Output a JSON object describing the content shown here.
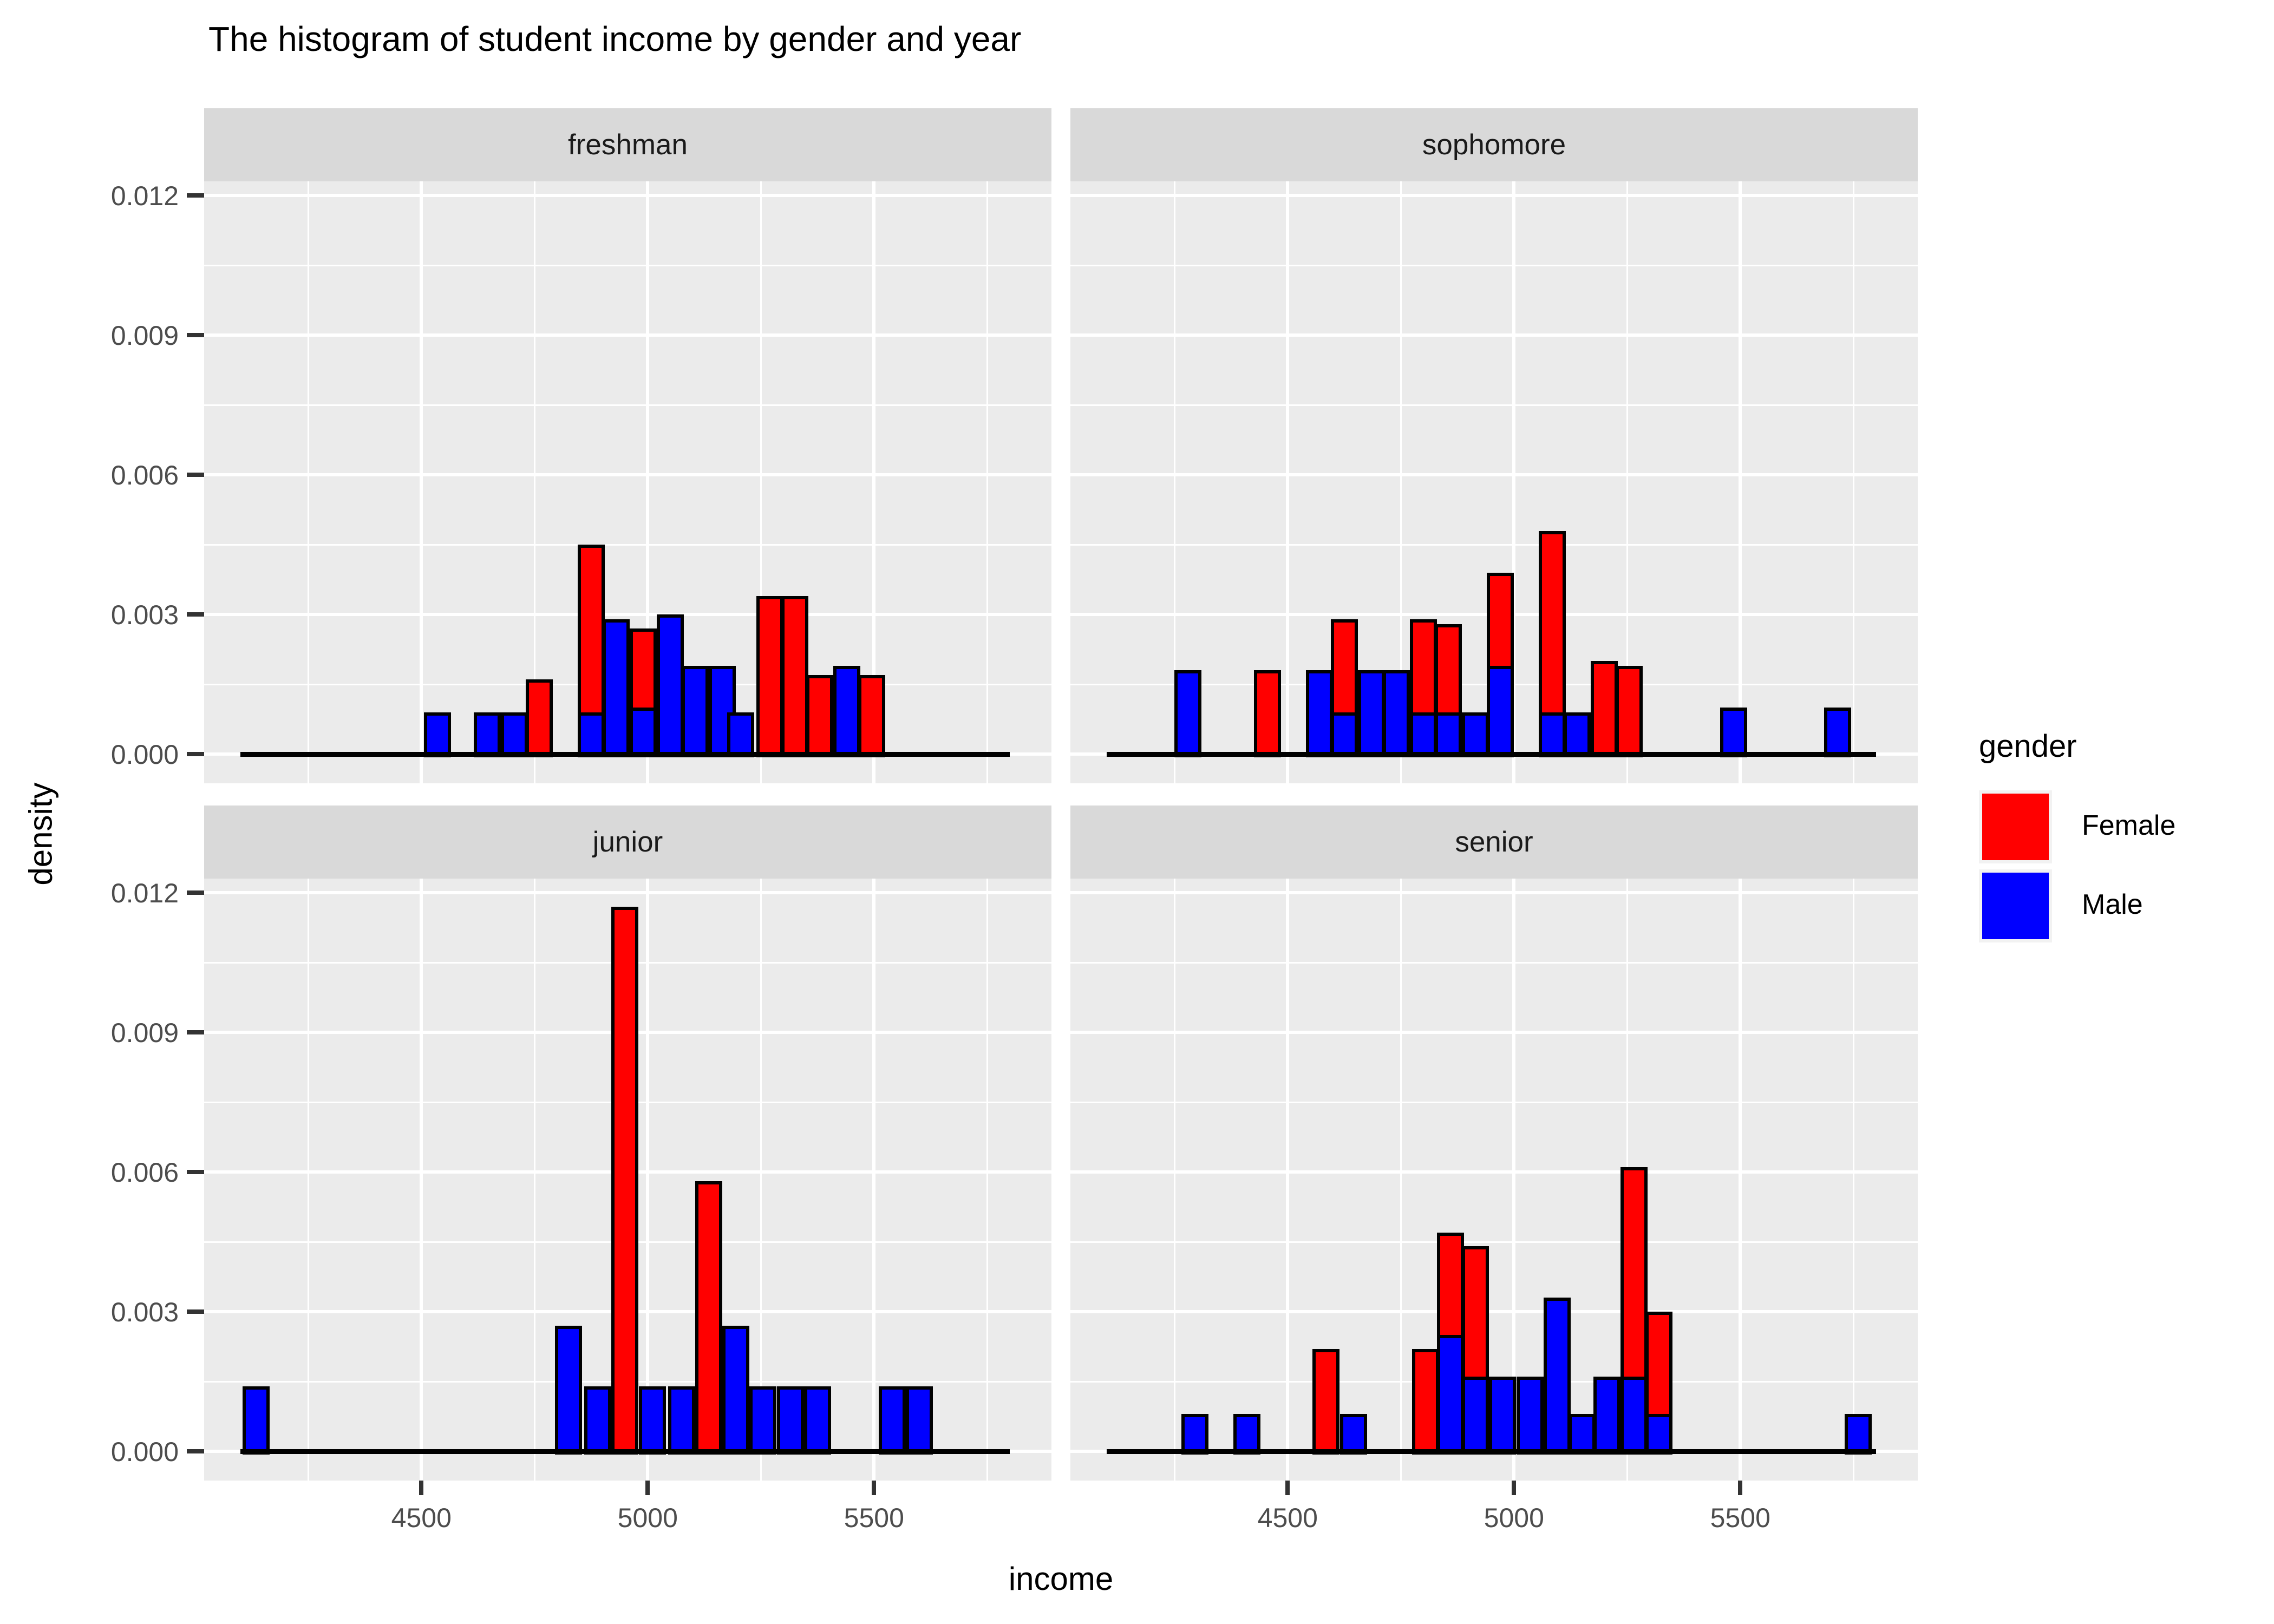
{
  "title": "The histogram of student income by gender and year",
  "colors": {
    "background": "#FFFFFF",
    "panel_bg": "#EBEBEB",
    "strip_bg": "#D9D9D9",
    "grid": "#FFFFFF",
    "bar_outline": "#000000",
    "female": "#FF0000",
    "male": "#0000FF",
    "tick_text": "#4D4D4D",
    "legend_key_bg": "#F2F2F2"
  },
  "legend": {
    "title": "gender"
  },
  "chart_data": {
    "type": "bar",
    "subtype": "stacked-faceted-histogram",
    "title": "The histogram of student income by gender and year",
    "xlabel": "income",
    "ylabel": "density",
    "x_tick_labels": [
      "4500",
      "5000",
      "5500"
    ],
    "x_tick_values": [
      4500,
      5000,
      5500
    ],
    "x_minor_values": [
      4250,
      4750,
      5250,
      5750
    ],
    "y_tick_labels": [
      "0.000",
      "0.003",
      "0.006",
      "0.009",
      "0.012"
    ],
    "y_tick_values": [
      0,
      0.003,
      0.006,
      0.009,
      0.012
    ],
    "y_minor_values": [
      0.0015,
      0.0045,
      0.0075,
      0.0105
    ],
    "x_range": [
      4020,
      5892
    ],
    "y_range": [
      0,
      0.01233
    ],
    "bin_width": 60,
    "baseline_span": [
      4100,
      5800
    ],
    "grid": "on",
    "legend_position": "right",
    "series": [
      {
        "name": "Female",
        "color": "#FF0000"
      },
      {
        "name": "Male",
        "color": "#0000FF"
      }
    ],
    "facets": [
      {
        "label": "freshman",
        "bars": [
          {
            "x": 4535,
            "male": 0.0009,
            "female": 0
          },
          {
            "x": 4645,
            "male": 0.0009,
            "female": 0
          },
          {
            "x": 4705,
            "male": 0.0009,
            "female": 0
          },
          {
            "x": 4760,
            "male": 0,
            "female": 0.0016
          },
          {
            "x": 4875,
            "male": 0.0009,
            "female": 0.0036
          },
          {
            "x": 4930,
            "male": 0.0029,
            "female": 0
          },
          {
            "x": 4990,
            "male": 0.001,
            "female": 0.0017
          },
          {
            "x": 5050,
            "male": 0.003,
            "female": 0
          },
          {
            "x": 5105,
            "male": 0.0019,
            "female": 0
          },
          {
            "x": 5165,
            "male": 0.0019,
            "female": 0
          },
          {
            "x": 5205,
            "male": 0.0009,
            "female": 0
          },
          {
            "x": 5270,
            "male": 0,
            "female": 0.0034
          },
          {
            "x": 5325,
            "male": 0,
            "female": 0.0034
          },
          {
            "x": 5380,
            "male": 0,
            "female": 0.0017
          },
          {
            "x": 5440,
            "male": 0.0019,
            "female": 0
          },
          {
            "x": 5495,
            "male": 0,
            "female": 0.0017
          }
        ]
      },
      {
        "label": "sophomore",
        "bars": [
          {
            "x": 4280,
            "male": 0.0018,
            "female": 0
          },
          {
            "x": 4455,
            "male": 0,
            "female": 0.0018
          },
          {
            "x": 4570,
            "male": 0.0018,
            "female": 0
          },
          {
            "x": 4625,
            "male": 0.0009,
            "female": 0.002
          },
          {
            "x": 4685,
            "male": 0.0018,
            "female": 0
          },
          {
            "x": 4740,
            "male": 0.0018,
            "female": 0
          },
          {
            "x": 4800,
            "male": 0.0009,
            "female": 0.002
          },
          {
            "x": 4855,
            "male": 0.0009,
            "female": 0.0019
          },
          {
            "x": 4915,
            "male": 0.0009,
            "female": 0
          },
          {
            "x": 4970,
            "male": 0.0019,
            "female": 0.002
          },
          {
            "x": 5085,
            "male": 0.0009,
            "female": 0.0039
          },
          {
            "x": 5140,
            "male": 0.0009,
            "female": 0
          },
          {
            "x": 5200,
            "male": 0,
            "female": 0.002
          },
          {
            "x": 5255,
            "male": 0,
            "female": 0.0019
          },
          {
            "x": 5485,
            "male": 0.001,
            "female": 0
          },
          {
            "x": 5715,
            "male": 0.001,
            "female": 0
          }
        ]
      },
      {
        "label": "junior",
        "bars": [
          {
            "x": 4135,
            "male": 0.0014,
            "female": 0
          },
          {
            "x": 4825,
            "male": 0.0027,
            "female": 0
          },
          {
            "x": 4890,
            "male": 0.0014,
            "female": 0
          },
          {
            "x": 4950,
            "male": 0,
            "female": 0.0117
          },
          {
            "x": 5010,
            "male": 0.0014,
            "female": 0
          },
          {
            "x": 5075,
            "male": 0.0014,
            "female": 0
          },
          {
            "x": 5135,
            "male": 0,
            "female": 0.0058
          },
          {
            "x": 5195,
            "male": 0.0027,
            "female": 0
          },
          {
            "x": 5255,
            "male": 0.0014,
            "female": 0
          },
          {
            "x": 5315,
            "male": 0.0014,
            "female": 0
          },
          {
            "x": 5375,
            "male": 0.0014,
            "female": 0
          },
          {
            "x": 5540,
            "male": 0.0014,
            "female": 0
          },
          {
            "x": 5600,
            "male": 0.0014,
            "female": 0
          }
        ]
      },
      {
        "label": "senior",
        "bars": [
          {
            "x": 4295,
            "male": 0.0008,
            "female": 0
          },
          {
            "x": 4410,
            "male": 0.0008,
            "female": 0
          },
          {
            "x": 4585,
            "male": 0,
            "female": 0.0022
          },
          {
            "x": 4645,
            "male": 0.0008,
            "female": 0
          },
          {
            "x": 4805,
            "male": 0,
            "female": 0.0022
          },
          {
            "x": 4860,
            "male": 0.0025,
            "female": 0.0022
          },
          {
            "x": 4915,
            "male": 0.0016,
            "female": 0.0028
          },
          {
            "x": 4975,
            "male": 0.0016,
            "female": 0
          },
          {
            "x": 5035,
            "male": 0.0016,
            "female": 0
          },
          {
            "x": 5095,
            "male": 0.0033,
            "female": 0
          },
          {
            "x": 5150,
            "male": 0.0008,
            "female": 0
          },
          {
            "x": 5205,
            "male": 0.0016,
            "female": 0
          },
          {
            "x": 5265,
            "male": 0.0016,
            "female": 0.0045
          },
          {
            "x": 5320,
            "male": 0.0008,
            "female": 0.0022
          },
          {
            "x": 5760,
            "male": 0.0008,
            "female": 0
          }
        ]
      }
    ]
  }
}
